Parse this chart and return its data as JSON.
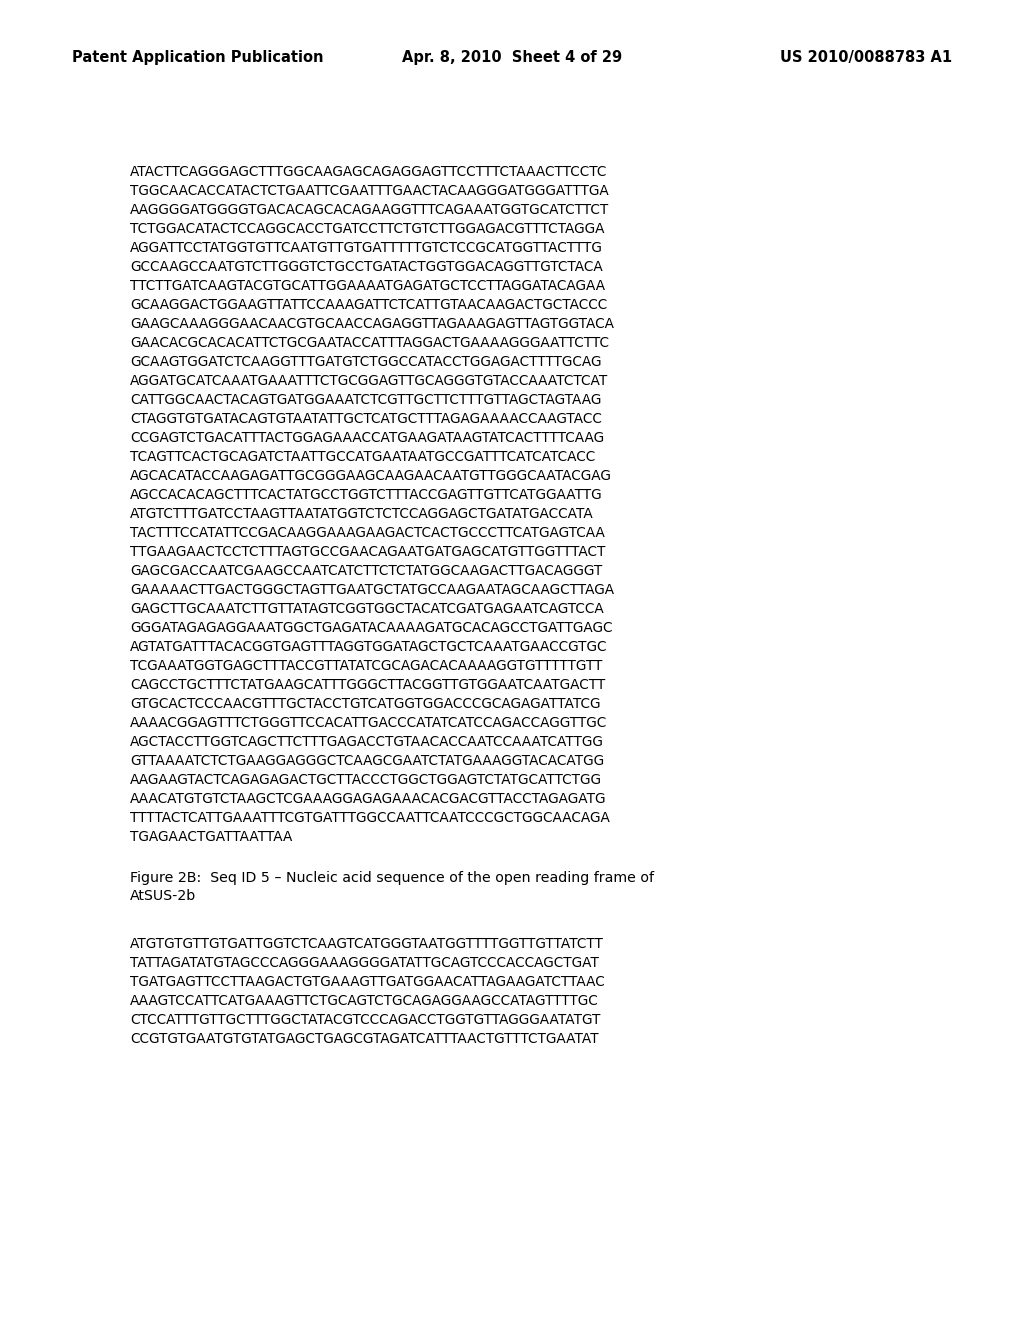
{
  "header_left": "Patent Application Publication",
  "header_center": "Apr. 8, 2010  Sheet 4 of 29",
  "header_right": "US 2010/0088783 A1",
  "background_color": "#ffffff",
  "text_color": "#000000",
  "header_font_size": 10.5,
  "sequence_font_size": 9.8,
  "caption_font_size": 10.2,
  "seq1_lines": [
    "ATACTTCAGGGAGCTTTGGCAAGAGCAGAGGAGTTCCTTTCTAAACTTCCTC",
    "TGGCAACACCATACTCTGAATTCGAATTTGAACTACAAGGGATGGGATTTGA",
    "AAGGGGATGGGGTGACACAGCACAGAAGGTTTCAGAAATGGTGCATCTTCT",
    "TCTGGACATACTCCAGGCACCTGATCCTTCTGTCTTGGAGACGTTTCTAGGA",
    "AGGATTCCTATGGTGTTCAATGTTGTGATTTTTGTCTCCGCATGGTTACTTTG",
    "GCCAAGCCAATGTCTTGGGTCTGCCTGATACTGGTGGACAGGTTGTCTACA",
    "TTCTTGATCAAGTACGTGCATTGGAAAATGAGATGCTCCTTAGGATACAGAA",
    "GCAAGGACTGGAAGTTATTCCAAAGATTCTCATTGTAACAAGACTGCTACCC",
    "GAAGCAAAGGGAACAACGTGCAACCAGAGGTTAGAAAGAGTTAGTGGTACA",
    "GAACACGCACACATTCTGCGAATACCATTTAGGACTGAAAAGGGAATTCTTC",
    "GCAAGTGGATCTCAAGGTTTGATGTCTGGCCATACCTGGAGACTTTTGCAG",
    "AGGATGCATCAAATGAAATTTCTGCGGAGTTGCAGGGTGTACCAAATCTCAT",
    "CATTGGCAACTACAGTGATGGAAATCTCGTTGCTTCTTTGTTAGCTAGTAAG",
    "CTAGGTGTGATACAGTGTAATATTGCTCATGCTTTAGAGAAAACCAAGTACC",
    "CCGAGTCTGACATTTACTGGAGAAACCATGAAGATAAGTATCACTTTTCAAG",
    "TCAGTTCACTGCAGATCTAATTGCCATGAATAATGCCGATTTCATCATCACC",
    "AGCACATACCAAGAGATTGCGGGAAGCAAGAACAATGTTGGGCAATACGAG",
    "AGCCACACAGCTTTCACTATGCCTGGTCTTTACCGAGTTGTTCATGGAATTG",
    "ATGTCTTTGATCCTAAGTTAATATGGTCTCTCCAGGAGCTGATATGACCATA",
    "TACTTTCCATATTCCGACAAGGAAAGAAGACTCACTGCCCTTCATGAGTCAA",
    "TTGAAGAACTCCTCTTTAGTGCCGAACAGAATGATGAGCATGTTGGTTTACT",
    "GAGCGACCAATCGAAGCCAATCATCTTCTCTATGGCAAGACTTGACAGGGT",
    "GAAAAACTTGACTGGGCTAGTTGAATGCTATGCCAAGAATAGCAAGCTTAGA",
    "GAGCTTGCAAATCTTGTTATAGTCGGTGGCTACATCGATGAGAATCAGTCCA",
    "GGGATAGAGAGGAAATGGCTGAGATACAAAAGATGCACAGCCTGATTGAGC",
    "AGTATGATTTACACGGTGAGTTTAGGTGGATAGCTGCTCAAATGAACCGTGC",
    "TCGAAATGGTGAGCTTTACCGTTATATCGCAGACACAAAAGGTGTTTTTGTT",
    "CAGCCTGCTTTCTATGAAGCATTTGGGCTTACGGTTGTGGAATCAATGACTT",
    "GTGCACTCCCAACGTTTGCTACCTGTCATGGTGGACCCGCAGAGATTATCG",
    "AAAACGGAGTTTCTGGGTTCCACATTGACCCATATCATCCAGACCAGGTTGC",
    "AGCTACCTTGGTCAGCTTCTTTGAGACCTGTAACACCAATCCAAATCATTGG",
    "GTTAAAATCTCTGAAGGAGGGCTCAAGCGAATCTATGAAAGGTACACATGG",
    "AAGAAGTACTCAGAGAGACTGCTTACCCTGGCTGGAGTCTATGCATTCTGG",
    "AAACATGTGTCTAAGCTCGAAAGGAGAGAAACACGACGTTACCTAGAGATG",
    "TTTTACTCATTGAAATTTCGTGATTTGGCCAATTCAATCCCGCTGGCAACAGA",
    "TGAGAACTGATTAATTAA"
  ],
  "caption_lines": [
    "Figure 2B:  Seq ID 5 – Nucleic acid sequence of the open reading frame of",
    "AtSUS-2b"
  ],
  "seq2_lines": [
    "ATGTGTGTTGTGATTGGTCTCAAGTCATGGGTAATGGTTTTGGTTGTTATCTT",
    "TATTAGATATGTAGCCCAGGGAAAGGGGATATTGCAGTCCCACCAGCTGAT",
    "TGATGAGTTCCTTAAGACTGTGAAAGTTGATGGAACATTAGAAGATCTTAAC",
    "AAAGTCCATTCATGAAAGTTCTGCAGTCTGCAGAGGAAGCCATAGTTTTGC",
    "CTCCATTTGTTGCTTTGGCTATACGTCCCAGACCTGGTGTTAGGGAATATGT",
    "CCGTGTGAATGTGTATGAGCTGAGCGTAGATCATTTAACTGTTTCTGAATAT"
  ]
}
